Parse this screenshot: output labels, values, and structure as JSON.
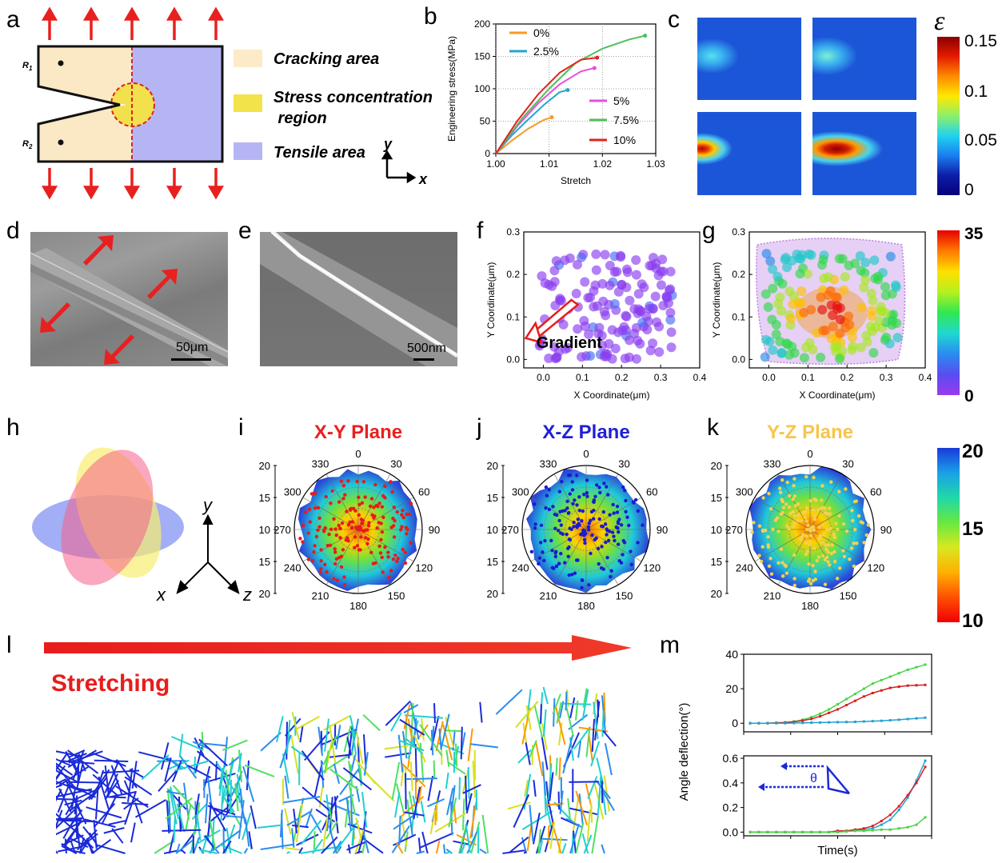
{
  "panel_letters": [
    "a",
    "b",
    "c",
    "d",
    "e",
    "f",
    "g",
    "h",
    "i",
    "j",
    "k",
    "l",
    "m"
  ],
  "panel_a": {
    "r1": "R",
    "r1_sub": "1",
    "r2": "R",
    "r2_sub": "2",
    "legend": [
      {
        "label": "Cracking area",
        "color": "#fdebc8"
      },
      {
        "label": "Stress concentration",
        "label2": " region",
        "color": "#f3e34a"
      },
      {
        "label": "Tensile area",
        "color": "#b6b5f4"
      }
    ],
    "axis_y": "y",
    "axis_x": "x",
    "colors": {
      "arrow": "#e8201f",
      "crack": "#fbe9c6",
      "tensile": "#b6b5f4",
      "conc": "#f2e04c"
    }
  },
  "panel_c": {
    "colorbar_symbol": "ε",
    "ticks": [
      "0.15",
      "0.1",
      "0.05",
      "0"
    ]
  },
  "panel_d": {
    "scale": "50μm"
  },
  "panel_e": {
    "scale": "500nm"
  },
  "panel_f": {
    "gradient_label": "Gradient"
  },
  "panel_g_colorbar": {
    "ticks": [
      "35",
      "0"
    ]
  },
  "panel_i": {
    "title": "X-Y Plane",
    "color": "#e82020"
  },
  "panel_j": {
    "title": "X-Z Plane",
    "color": "#1f1fd6"
  },
  "panel_k": {
    "title": "Y-Z Plane",
    "color": "#f7c54c"
  },
  "polar_common": {
    "angles": [
      "0",
      "30",
      "60",
      "90",
      "120",
      "150",
      "180",
      "210",
      "240",
      "270",
      "300",
      "330"
    ],
    "radial_ticks": [
      "20",
      "15",
      "10",
      "15",
      "20"
    ]
  },
  "panel_ijk_colorbar": {
    "ticks": [
      "20",
      "15",
      "10"
    ]
  },
  "panel_h": {
    "axis_y": "y",
    "axis_x": "x",
    "axis_z": "z"
  },
  "panel_l": {
    "label": "Stretching"
  },
  "panel_m": {
    "ylabel": "Angle deflection(°)",
    "xlabel": "Time(s)",
    "theta": "θ"
  },
  "chart_data": [
    {
      "type": "line",
      "panel": "b",
      "xlabel": "Stretch",
      "ylabel": "Engineering stress(MPa)",
      "xlim": [
        1.0,
        1.03
      ],
      "ylim": [
        0,
        200
      ],
      "xticks": [
        "1.00",
        "1.01",
        "1.02",
        "1.03"
      ],
      "yticks": [
        "0",
        "50",
        "100",
        "150",
        "200"
      ],
      "series": [
        {
          "name": "0%",
          "color": "#f59a25",
          "x": [
            1.0,
            1.003,
            1.006,
            1.009,
            1.0105
          ],
          "y": [
            0,
            20,
            38,
            52,
            56
          ]
        },
        {
          "name": "2.5%",
          "color": "#21a7cf",
          "x": [
            1.0,
            1.003,
            1.006,
            1.009,
            1.012,
            1.0135
          ],
          "y": [
            0,
            28,
            52,
            75,
            95,
            98
          ]
        },
        {
          "name": "5%",
          "color": "#e44ee0",
          "x": [
            1.0,
            1.004,
            1.008,
            1.012,
            1.016,
            1.0185
          ],
          "y": [
            0,
            42,
            78,
            107,
            127,
            132
          ]
        },
        {
          "name": "7.5%",
          "color": "#4fbf5b",
          "x": [
            1.0,
            1.005,
            1.01,
            1.015,
            1.02,
            1.025,
            1.028
          ],
          "y": [
            0,
            55,
            100,
            140,
            162,
            176,
            182
          ]
        },
        {
          "name": "10%",
          "color": "#e41f1f",
          "x": [
            1.0,
            1.004,
            1.008,
            1.012,
            1.016,
            1.019
          ],
          "y": [
            0,
            50,
            92,
            125,
            145,
            148
          ]
        }
      ]
    },
    {
      "type": "scatter",
      "panel": "f",
      "xlabel": "X Coordinate(μm)",
      "ylabel": "Y Coordinate(μm)",
      "xlim": [
        -0.05,
        0.4
      ],
      "ylim": [
        -0.02,
        0.3
      ],
      "xticks": [
        "0.0",
        "0.1",
        "0.2",
        "0.3",
        "0.4"
      ],
      "yticks": [
        "0.0",
        "0.1",
        "0.2",
        "0.3"
      ]
    },
    {
      "type": "scatter",
      "panel": "g",
      "xlabel": "X Coordinate(μm)",
      "ylabel": "Y Coordinate(μm)",
      "xlim": [
        -0.05,
        0.4
      ],
      "ylim": [
        -0.02,
        0.3
      ],
      "xticks": [
        "0.0",
        "0.1",
        "0.2",
        "0.3",
        "0.4"
      ],
      "yticks": [
        "0.0",
        "0.1",
        "0.2",
        "0.3"
      ]
    },
    {
      "type": "line",
      "panel": "m-top",
      "ylim": [
        -5,
        40
      ],
      "yticks": [
        "0",
        "20",
        "40"
      ],
      "series": [
        {
          "color": "#4ad446",
          "x": [
            0,
            1,
            2,
            3,
            4,
            5,
            6,
            7,
            8,
            9,
            10,
            11,
            12,
            13,
            14,
            15,
            16,
            17,
            18,
            19,
            20
          ],
          "y": [
            0,
            0,
            0,
            0.2,
            0.5,
            1,
            2,
            3.5,
            5.5,
            8,
            11,
            14,
            17,
            20,
            23,
            25,
            27,
            29,
            31,
            32.5,
            34
          ]
        },
        {
          "color": "#d81f1f",
          "x": [
            0,
            1,
            2,
            3,
            4,
            5,
            6,
            7,
            8,
            9,
            10,
            11,
            12,
            13,
            14,
            15,
            16,
            17,
            18,
            19,
            20
          ],
          "y": [
            0,
            0,
            0,
            0.2,
            0.4,
            0.8,
            1.5,
            2.5,
            4,
            6,
            8,
            10.5,
            13,
            15.5,
            17.5,
            19,
            20.5,
            21.2,
            21.8,
            22,
            22.2
          ]
        },
        {
          "color": "#22a0d4",
          "x": [
            0,
            1,
            2,
            3,
            4,
            5,
            6,
            7,
            8,
            9,
            10,
            11,
            12,
            13,
            14,
            15,
            16,
            17,
            18,
            19,
            20
          ],
          "y": [
            0,
            0,
            0,
            0,
            0,
            0.1,
            0.2,
            0.3,
            0.4,
            0.5,
            0.6,
            0.7,
            0.8,
            1,
            1.2,
            1.4,
            1.7,
            2,
            2.4,
            2.8,
            3.2
          ]
        }
      ]
    },
    {
      "type": "line",
      "panel": "m-bottom",
      "ylim": [
        -0.03,
        0.62
      ],
      "yticks": [
        "0.0",
        "0.2",
        "0.4",
        "0.6"
      ],
      "series": [
        {
          "color": "#22a0d4",
          "x": [
            0,
            1,
            2,
            3,
            4,
            5,
            6,
            7,
            8,
            9,
            10,
            11,
            12,
            13,
            14,
            15,
            16,
            17,
            18,
            19,
            20
          ],
          "y": [
            0,
            0,
            0,
            0,
            0,
            0,
            0,
            0,
            0,
            0,
            0.01,
            0.01,
            0.02,
            0.02,
            0.03,
            0.06,
            0.1,
            0.18,
            0.28,
            0.42,
            0.58
          ]
        },
        {
          "color": "#d81f1f",
          "x": [
            0,
            1,
            2,
            3,
            4,
            5,
            6,
            7,
            8,
            9,
            10,
            11,
            12,
            13,
            14,
            15,
            16,
            17,
            18,
            19,
            20
          ],
          "y": [
            0,
            0,
            0,
            0,
            0,
            0,
            0,
            0,
            0,
            0,
            0.01,
            0.01,
            0.02,
            0.03,
            0.05,
            0.09,
            0.14,
            0.21,
            0.3,
            0.4,
            0.53
          ]
        },
        {
          "color": "#4ad446",
          "x": [
            0,
            1,
            2,
            3,
            4,
            5,
            6,
            7,
            8,
            9,
            10,
            11,
            12,
            13,
            14,
            15,
            16,
            17,
            18,
            19,
            20
          ],
          "y": [
            0,
            0,
            0,
            0,
            0,
            0,
            0,
            0,
            0,
            0,
            0,
            0.005,
            0.01,
            0.01,
            0.015,
            0.02,
            0.02,
            0.03,
            0.04,
            0.06,
            0.12
          ]
        }
      ]
    }
  ]
}
